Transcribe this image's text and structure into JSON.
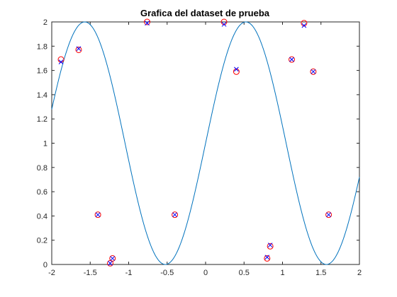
{
  "chart_data": {
    "type": "scatter",
    "title": "Grafica del dataset de prueba",
    "xlabel": "",
    "ylabel": "",
    "xlim": [
      -2,
      2
    ],
    "ylim": [
      0,
      2
    ],
    "grid": false,
    "xticks": [
      "-2",
      "-1.5",
      "-1",
      "-0.5",
      "0",
      "0.5",
      "1",
      "1.5",
      "2"
    ],
    "yticks": [
      "0",
      "0.2",
      "0.4",
      "0.6",
      "0.8",
      "1",
      "1.2",
      "1.4",
      "1.6",
      "1.8",
      "2"
    ],
    "curve": {
      "color": "#0072bd",
      "x_range": [
        -2,
        2
      ],
      "samples": 400
    },
    "series": [
      {
        "marker": "circle",
        "color": "#ff0000",
        "x": [
          -1.88,
          -1.65,
          -1.4,
          -1.24,
          -1.21,
          -0.76,
          -0.4,
          0.24,
          0.4,
          0.8,
          0.84,
          1.12,
          1.28,
          1.4,
          1.6
        ],
        "y": [
          1.69,
          1.77,
          0.41,
          0.01,
          0.05,
          2.0,
          0.41,
          2.0,
          1.59,
          0.05,
          0.15,
          1.69,
          1.99,
          1.59,
          0.41
        ]
      },
      {
        "marker": "x",
        "color": "#0000ff",
        "x": [
          -1.88,
          -1.65,
          -1.4,
          -1.24,
          -1.21,
          -0.76,
          -0.4,
          0.24,
          0.4,
          0.8,
          0.84,
          1.12,
          1.28,
          1.4,
          1.6
        ],
        "y": [
          1.67,
          1.78,
          0.41,
          0.01,
          0.05,
          1.99,
          0.41,
          1.98,
          1.61,
          0.06,
          0.16,
          1.69,
          1.97,
          1.59,
          0.41
        ]
      }
    ]
  }
}
